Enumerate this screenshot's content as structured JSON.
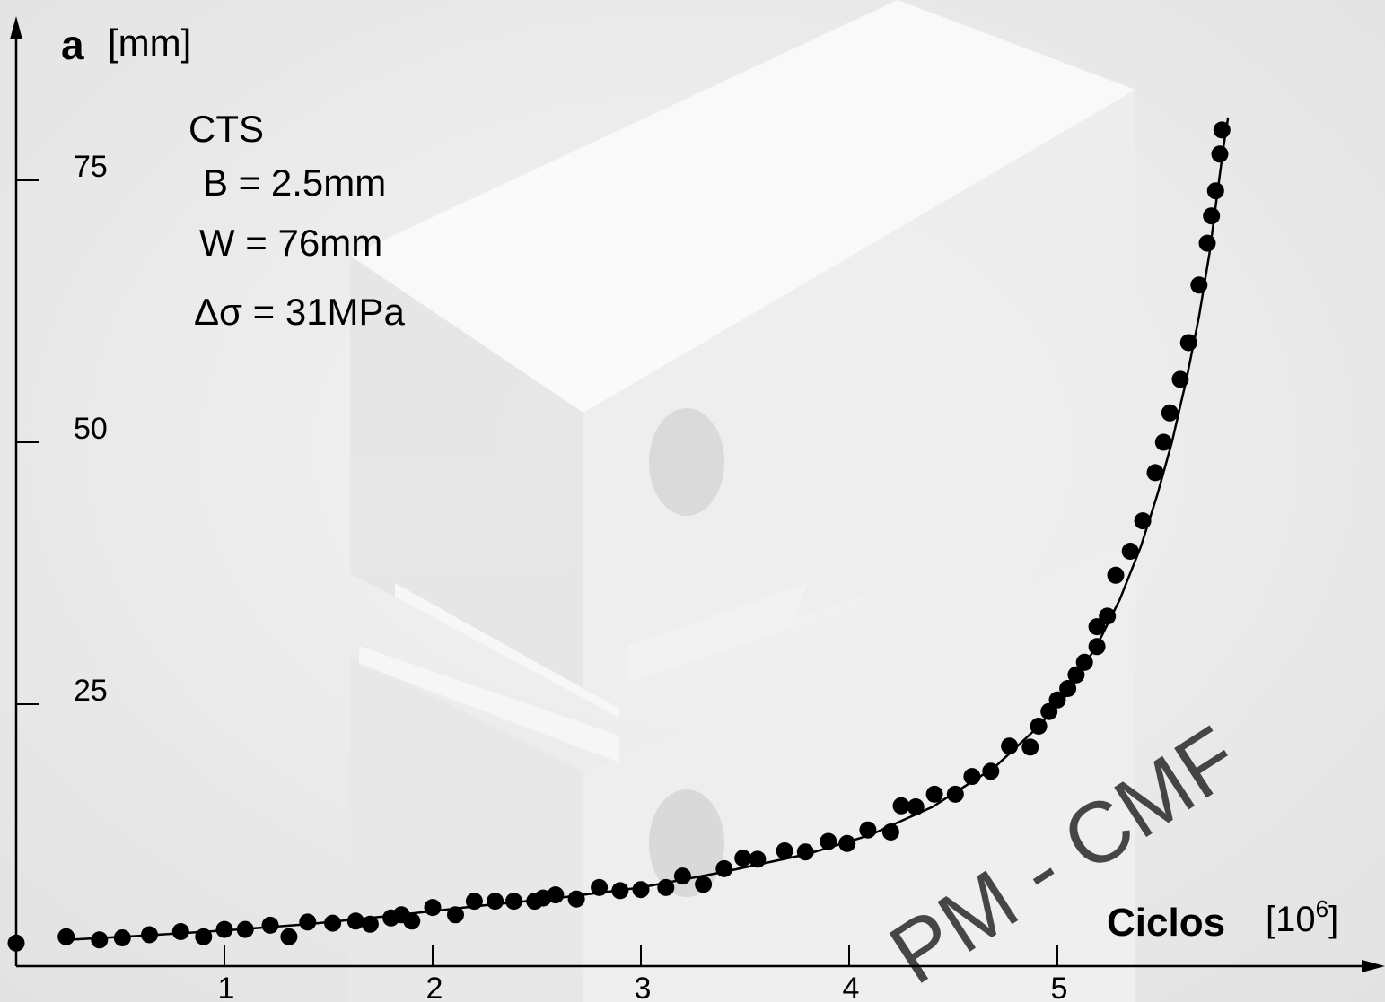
{
  "colors": {
    "background": "#ebebeb",
    "block_face_light": "#f6f6f6",
    "block_face_mid": "#e4e4e4",
    "ink": "#000000"
  },
  "annotations": {
    "specimen": "CTS",
    "thickness": "B = 2.5mm",
    "width": "W = 76mm",
    "stress_range": "Δσ = 31MPa",
    "watermark": "PM - CMF"
  },
  "axes": {
    "y_symbol": "a",
    "y_unit": "[mm]",
    "x_label": "Ciclos",
    "x_unit_prefix": "[10",
    "x_unit_exp": "6",
    "x_unit_suffix": "]"
  },
  "chart_data": {
    "type": "scatter",
    "title": "",
    "xlabel": "Ciclos [10^6]",
    "ylabel": "a [mm]",
    "xlim": [
      0,
      5.85
    ],
    "ylim": [
      0,
      85
    ],
    "x_ticks": [
      1,
      2,
      3,
      4,
      5
    ],
    "x_tick_labels": [
      "1",
      "2",
      "3",
      "4",
      "5"
    ],
    "y_ticks": [
      25,
      50,
      75
    ],
    "y_tick_labels": [
      "25",
      "50",
      "75"
    ],
    "grid": false,
    "legend": "none",
    "series": [
      {
        "kind": "points",
        "marker": "filled-circle",
        "x": [
          0.0,
          0.24,
          0.4,
          0.51,
          0.64,
          0.79,
          0.9,
          1.0,
          1.1,
          1.22,
          1.31,
          1.4,
          1.52,
          1.63,
          1.7,
          1.8,
          1.85,
          1.9,
          2.0,
          2.11,
          2.2,
          2.3,
          2.39,
          2.49,
          2.53,
          2.59,
          2.69,
          2.8,
          2.9,
          3.0,
          3.12,
          3.2,
          3.3,
          3.4,
          3.49,
          3.56,
          3.69,
          3.79,
          3.9,
          3.99,
          4.09,
          4.2,
          4.25,
          4.32,
          4.41,
          4.51,
          4.59,
          4.68,
          4.77,
          4.87,
          4.91,
          4.96,
          5.0,
          5.05,
          5.09,
          5.13,
          5.19,
          5.19,
          5.24,
          5.28,
          5.35,
          5.41,
          5.47,
          5.51,
          5.54,
          5.59,
          5.63,
          5.68,
          5.72,
          5.74,
          5.76,
          5.78,
          5.79
        ],
        "y": [
          2.2,
          2.8,
          2.5,
          2.7,
          3.0,
          3.3,
          2.8,
          3.5,
          3.5,
          3.9,
          2.8,
          4.2,
          4.1,
          4.3,
          4.0,
          4.6,
          4.9,
          4.3,
          5.6,
          4.9,
          6.2,
          6.2,
          6.2,
          6.2,
          6.5,
          6.8,
          6.4,
          7.5,
          7.2,
          7.3,
          7.5,
          8.6,
          7.8,
          9.3,
          10.3,
          10.2,
          11.0,
          10.9,
          11.9,
          11.7,
          13.0,
          12.8,
          15.3,
          15.2,
          16.4,
          16.4,
          18.1,
          18.6,
          21.0,
          20.9,
          22.9,
          24.3,
          25.4,
          26.5,
          27.8,
          29.0,
          30.5,
          32.4,
          33.4,
          37.3,
          39.6,
          42.5,
          47.1,
          50.0,
          52.8,
          56.0,
          59.5,
          65.0,
          69.0,
          71.6,
          74.0,
          77.5,
          79.8
        ]
      },
      {
        "kind": "fitted-curve",
        "x": [
          0.24,
          0.6,
          1.0,
          1.4,
          1.8,
          2.2,
          2.6,
          3.0,
          3.4,
          3.8,
          4.1,
          4.4,
          4.7,
          4.9,
          5.05,
          5.2,
          5.3,
          5.4,
          5.48,
          5.55,
          5.62,
          5.68,
          5.73,
          5.77,
          5.8,
          5.82
        ],
        "y": [
          2.5,
          2.9,
          3.4,
          4.0,
          4.8,
          5.7,
          6.5,
          7.5,
          9.0,
          10.7,
          12.5,
          15.2,
          19.0,
          22.7,
          26.0,
          31.0,
          35.0,
          40.0,
          45.0,
          50.0,
          56.0,
          62.0,
          68.0,
          74.0,
          78.5,
          81.0
        ]
      }
    ]
  }
}
